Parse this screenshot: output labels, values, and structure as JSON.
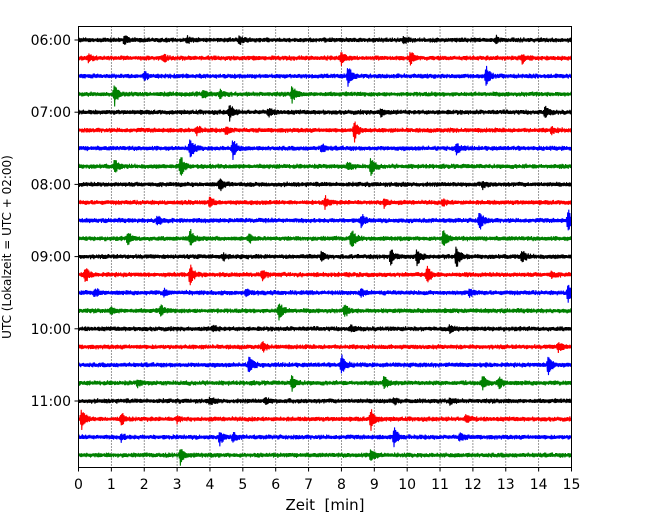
{
  "chart_data": {
    "type": "line",
    "title": "",
    "xlabel": "Zeit  [min]",
    "ylabel": "UTC (Lokalzeit = UTC + 02:00)",
    "xlim": [
      0,
      15
    ],
    "x_ticks": [
      "0",
      "1",
      "2",
      "3",
      "4",
      "5",
      "6",
      "7",
      "8",
      "9",
      "10",
      "11",
      "12",
      "13",
      "14",
      "15"
    ],
    "y_ticks": [
      "06:00",
      "07:00",
      "08:00",
      "09:00",
      "10:00",
      "11:00"
    ],
    "grid": "vertical dotted",
    "line_interval_minutes": 15,
    "start_time": "06:00",
    "colors": [
      "#000000",
      "#ff0000",
      "#0000ff",
      "#008000"
    ],
    "traces": [
      {
        "time": "06:00",
        "events": [
          [
            1.4,
            0.4
          ],
          [
            3.3,
            0.3
          ],
          [
            4.9,
            0.3
          ],
          [
            9.9,
            0.3
          ],
          [
            12.7,
            0.3
          ]
        ]
      },
      {
        "time": "06:15",
        "events": [
          [
            0.3,
            0.3
          ],
          [
            2.6,
            0.3
          ],
          [
            8.0,
            0.5
          ],
          [
            10.1,
            0.6
          ],
          [
            13.5,
            0.4
          ]
        ]
      },
      {
        "time": "06:30",
        "events": [
          [
            2.0,
            0.4
          ],
          [
            8.2,
            1.0
          ],
          [
            12.4,
            1.0
          ]
        ]
      },
      {
        "time": "06:45",
        "events": [
          [
            1.1,
            1.0
          ],
          [
            3.8,
            0.4
          ],
          [
            4.3,
            0.4
          ],
          [
            6.5,
            0.8
          ]
        ]
      },
      {
        "time": "07:00",
        "events": [
          [
            4.6,
            0.8
          ],
          [
            5.8,
            0.4
          ],
          [
            9.2,
            0.4
          ],
          [
            14.2,
            0.5
          ]
        ]
      },
      {
        "time": "07:15",
        "events": [
          [
            3.6,
            0.4
          ],
          [
            4.5,
            0.4
          ],
          [
            8.4,
            1.0
          ],
          [
            14.4,
            0.3
          ]
        ]
      },
      {
        "time": "07:30",
        "events": [
          [
            3.4,
            1.0
          ],
          [
            4.7,
            0.9
          ],
          [
            7.4,
            0.4
          ],
          [
            11.5,
            0.5
          ]
        ]
      },
      {
        "time": "07:45",
        "events": [
          [
            1.1,
            0.6
          ],
          [
            3.1,
            1.0
          ],
          [
            8.2,
            0.4
          ],
          [
            8.9,
            0.8
          ]
        ]
      },
      {
        "time": "08:00",
        "events": [
          [
            4.3,
            0.6
          ],
          [
            12.3,
            0.3
          ]
        ]
      },
      {
        "time": "08:15",
        "events": [
          [
            4.0,
            0.5
          ],
          [
            7.5,
            0.6
          ],
          [
            9.3,
            0.4
          ],
          [
            11.1,
            0.3
          ]
        ]
      },
      {
        "time": "08:30",
        "events": [
          [
            2.4,
            0.5
          ],
          [
            8.6,
            0.6
          ],
          [
            12.2,
            1.0
          ],
          [
            14.9,
            1.0
          ]
        ]
      },
      {
        "time": "08:45",
        "events": [
          [
            1.5,
            0.6
          ],
          [
            3.4,
            0.8
          ],
          [
            5.2,
            0.4
          ],
          [
            8.3,
            1.0
          ],
          [
            11.1,
            0.8
          ]
        ]
      },
      {
        "time": "09:00",
        "events": [
          [
            4.4,
            0.3
          ],
          [
            7.4,
            0.4
          ],
          [
            9.5,
            0.7
          ],
          [
            10.3,
            0.8
          ],
          [
            11.5,
            1.0
          ],
          [
            13.5,
            0.6
          ]
        ]
      },
      {
        "time": "09:15",
        "events": [
          [
            0.2,
            0.7
          ],
          [
            3.4,
            1.0
          ],
          [
            5.6,
            0.5
          ],
          [
            10.6,
            0.9
          ],
          [
            14.4,
            0.3
          ]
        ]
      },
      {
        "time": "09:30",
        "events": [
          [
            0.5,
            0.4
          ],
          [
            2.6,
            0.3
          ],
          [
            5.1,
            0.4
          ],
          [
            8.6,
            0.4
          ],
          [
            11.9,
            0.4
          ],
          [
            14.9,
            1.0
          ]
        ]
      },
      {
        "time": "09:45",
        "events": [
          [
            1.0,
            0.3
          ],
          [
            2.5,
            0.5
          ],
          [
            6.1,
            1.0
          ],
          [
            8.1,
            0.6
          ]
        ]
      },
      {
        "time": "10:00",
        "events": [
          [
            4.1,
            0.3
          ],
          [
            8.3,
            0.3
          ],
          [
            11.3,
            0.3
          ]
        ]
      },
      {
        "time": "10:15",
        "events": [
          [
            5.6,
            0.4
          ],
          [
            14.6,
            0.5
          ]
        ]
      },
      {
        "time": "10:30",
        "events": [
          [
            5.2,
            1.0
          ],
          [
            8.0,
            1.0
          ],
          [
            14.3,
            1.0
          ]
        ]
      },
      {
        "time": "10:45",
        "events": [
          [
            1.8,
            0.3
          ],
          [
            6.5,
            0.7
          ],
          [
            9.3,
            0.6
          ],
          [
            12.3,
            0.6
          ],
          [
            12.8,
            0.6
          ]
        ]
      },
      {
        "time": "11:00",
        "events": [
          [
            4.0,
            0.3
          ],
          [
            5.7,
            0.3
          ],
          [
            9.6,
            0.3
          ],
          [
            11.3,
            0.3
          ]
        ]
      },
      {
        "time": "11:15",
        "events": [
          [
            0.1,
            1.0
          ],
          [
            1.3,
            0.6
          ],
          [
            3.0,
            0.3
          ],
          [
            8.9,
            1.0
          ],
          [
            11.8,
            0.4
          ]
        ]
      },
      {
        "time": "11:30",
        "events": [
          [
            1.3,
            0.3
          ],
          [
            4.3,
            0.6
          ],
          [
            4.7,
            0.4
          ],
          [
            9.6,
            0.9
          ],
          [
            11.6,
            0.4
          ]
        ]
      },
      {
        "time": "11:45",
        "events": [
          [
            3.1,
            0.8
          ],
          [
            8.9,
            0.6
          ]
        ]
      }
    ]
  }
}
